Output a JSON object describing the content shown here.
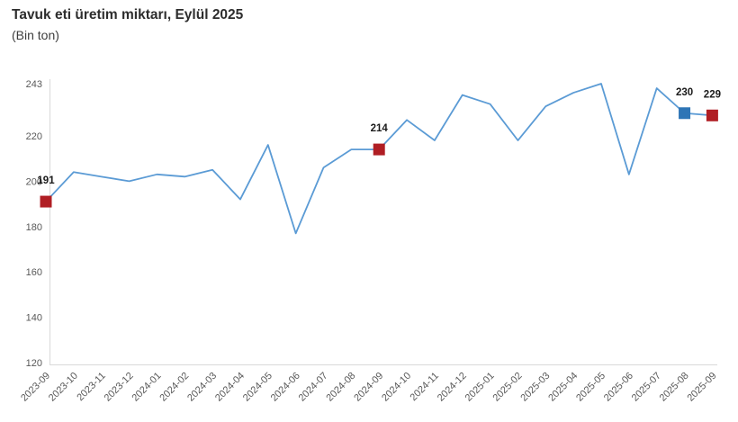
{
  "title": "Tavuk eti üretim miktarı, Eylül 2025",
  "subtitle": "(Bin ton)",
  "chart_data": {
    "type": "line",
    "x": [
      "2023-09",
      "2023-10",
      "2023-11",
      "2023-12",
      "2024-01",
      "2024-02",
      "2024-03",
      "2024-04",
      "2024-05",
      "2024-06",
      "2024-07",
      "2024-08",
      "2024-09",
      "2024-10",
      "2024-11",
      "2024-12",
      "2025-01",
      "2025-02",
      "2025-03",
      "2025-04",
      "2025-05",
      "2025-06",
      "2025-07",
      "2025-08",
      "2025-09"
    ],
    "values": [
      191,
      204,
      202,
      200,
      203,
      202,
      205,
      192,
      216,
      177,
      206,
      214,
      214,
      227,
      218,
      238,
      234,
      218,
      233,
      239,
      243,
      203,
      241,
      230,
      229
    ],
    "yticks": [
      243,
      220,
      200,
      180,
      160,
      140,
      120
    ],
    "ylim": [
      120,
      243
    ],
    "grid": false,
    "legend": false,
    "annotations": [
      {
        "x": "2023-09",
        "value": 191,
        "label": "191",
        "color": "#b01e24"
      },
      {
        "x": "2024-09",
        "value": 214,
        "label": "214",
        "color": "#b01e24"
      },
      {
        "x": "2025-08",
        "value": 230,
        "label": "230",
        "color": "#2e75b6"
      },
      {
        "x": "2025-09",
        "value": 229,
        "label": "229",
        "color": "#b01e24"
      }
    ],
    "colors": {
      "line": "#5b9bd5",
      "axis": "#d9d9d9",
      "tick_text": "#595959",
      "annotation_text": "#1a1a1a",
      "marker_red": "#b01e24",
      "marker_blue": "#2e75b6"
    }
  }
}
